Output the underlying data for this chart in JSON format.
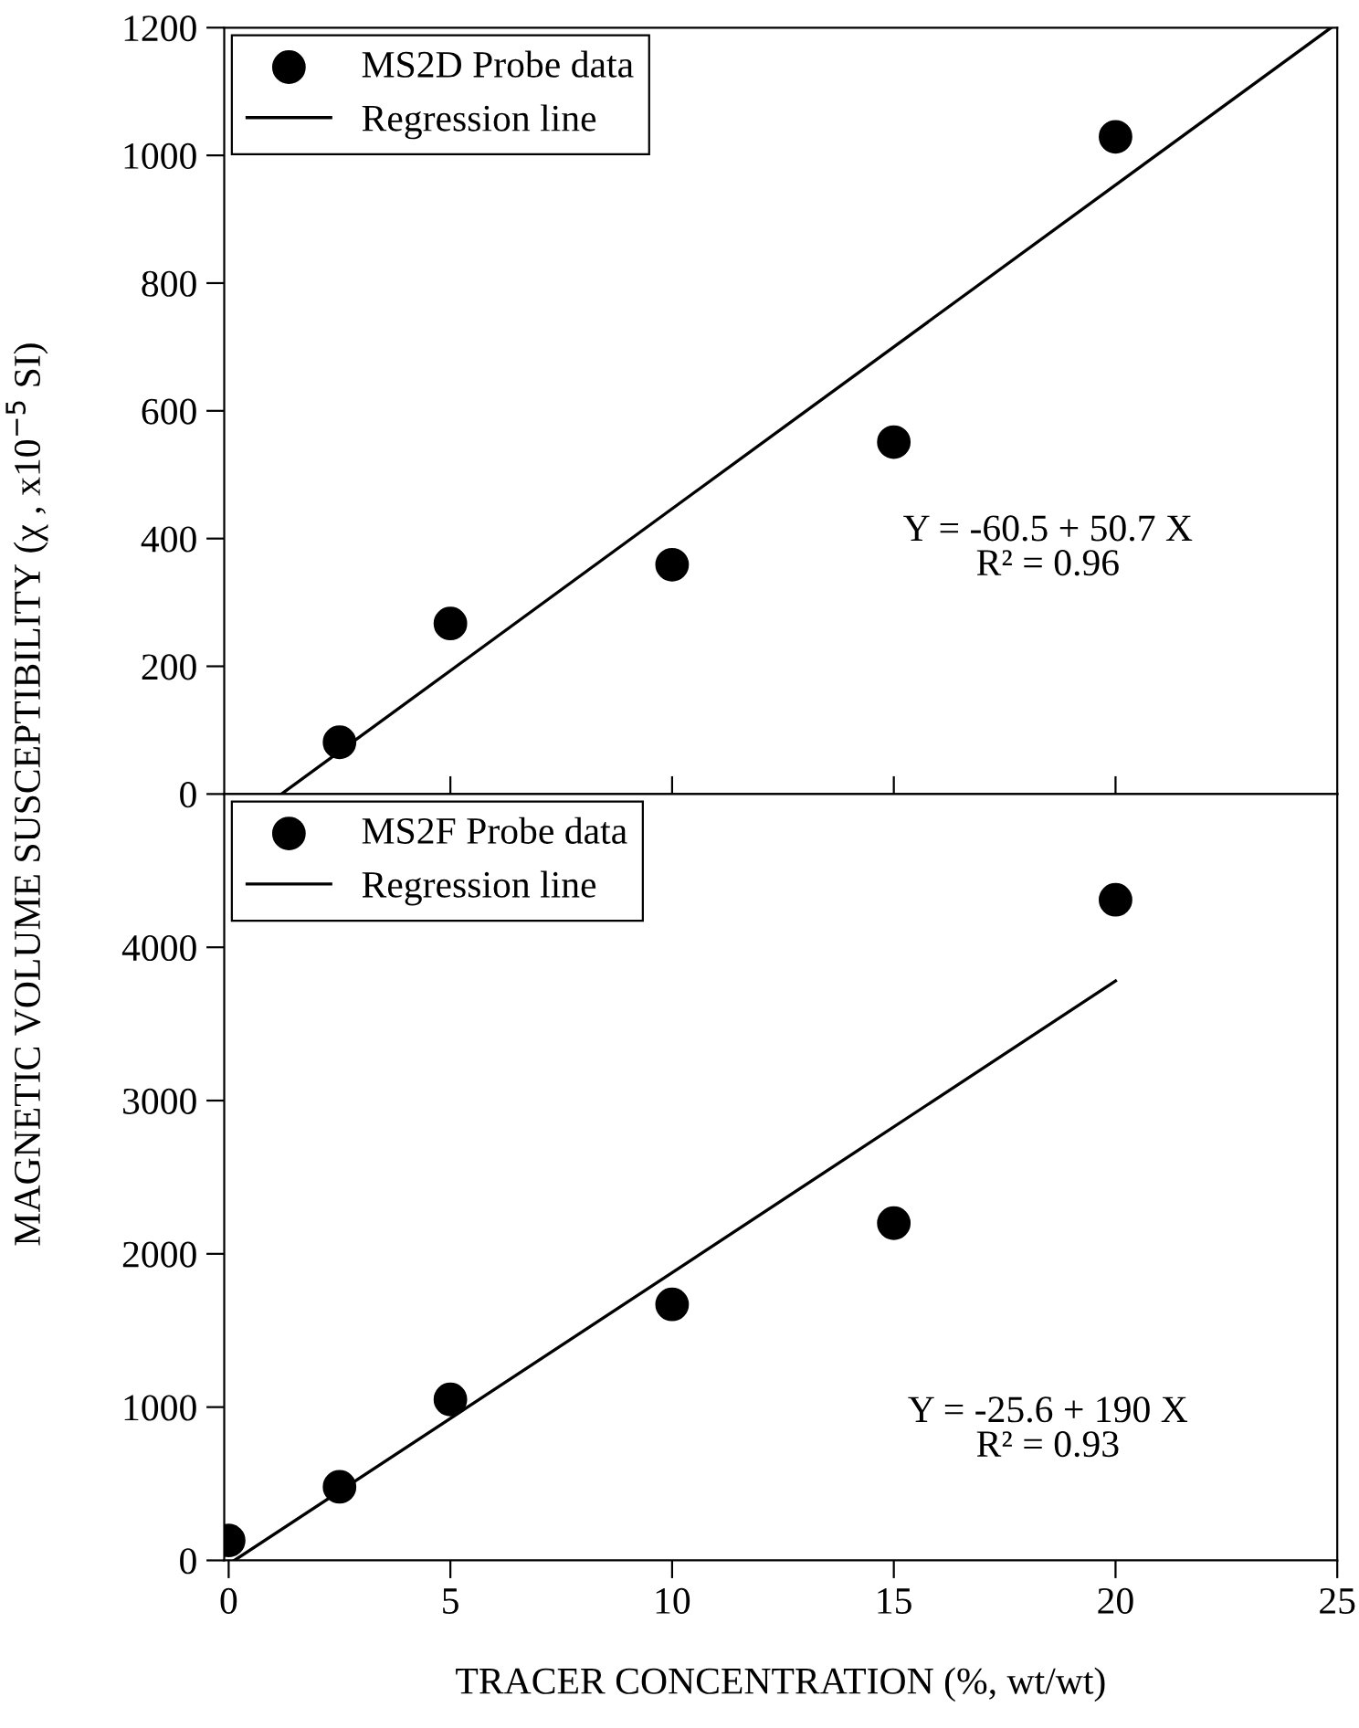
{
  "chart_data": [
    {
      "type": "scatter",
      "ylabel": "MAGNETIC VOLUME SUSCEPTIBILITY (χ , x10$^{−5}$ SI)",
      "xlim": [
        -0.1,
        25
      ],
      "ylim": [
        0,
        1200
      ],
      "xticks": [
        {
          "value": 5,
          "label": null
        },
        {
          "value": 10,
          "label": null
        },
        {
          "value": 15,
          "label": null
        },
        {
          "value": 20,
          "label": null
        }
      ],
      "yticks": [
        0,
        200,
        400,
        600,
        800,
        1000,
        1200
      ],
      "tick_labels": "y",
      "legend": "top left",
      "grid": false,
      "series": [
        {
          "name": "MS2D Probe data",
          "marker": "circle",
          "color": "#000000",
          "x": [
            2.5,
            5,
            10,
            15,
            20
          ],
          "values": [
            81,
            267,
            359,
            551,
            1029
          ]
        },
        {
          "name": "Regression line",
          "type": "line",
          "marker": "none",
          "color": "#000000",
          "x": [
            1.19,
            24.86
          ],
          "values": [
            0,
            1200
          ]
        }
      ],
      "annotations": [
        "Y = -60.5 + 50.7 X\nR² = 0.96"
      ]
    },
    {
      "type": "scatter",
      "xlabel": "TRACER CONCENTRATION (%, wt/wt)",
      "xlim": [
        -0.1,
        25
      ],
      "ylim": [
        0,
        5000
      ],
      "xticks": [
        0,
        5,
        10,
        15,
        20,
        25
      ],
      "yticks": [
        0,
        1000,
        2000,
        3000,
        4000
      ],
      "legend": "top left",
      "grid": false,
      "series": [
        {
          "name": "MS2F Probe data",
          "marker": "circle",
          "color": "#000000",
          "x": [
            0,
            2.5,
            5,
            10,
            15,
            20
          ],
          "values": [
            130,
            480,
            1050,
            1670,
            2200,
            4310
          ]
        },
        {
          "name": "Regression line",
          "type": "line",
          "marker": "none",
          "color": "#000000",
          "x": [
            0.13,
            20
          ],
          "values": [
            0,
            3780
          ]
        }
      ],
      "annotations": [
        "Y = -25.6 + 190 X\nR² = 0.93"
      ]
    }
  ]
}
